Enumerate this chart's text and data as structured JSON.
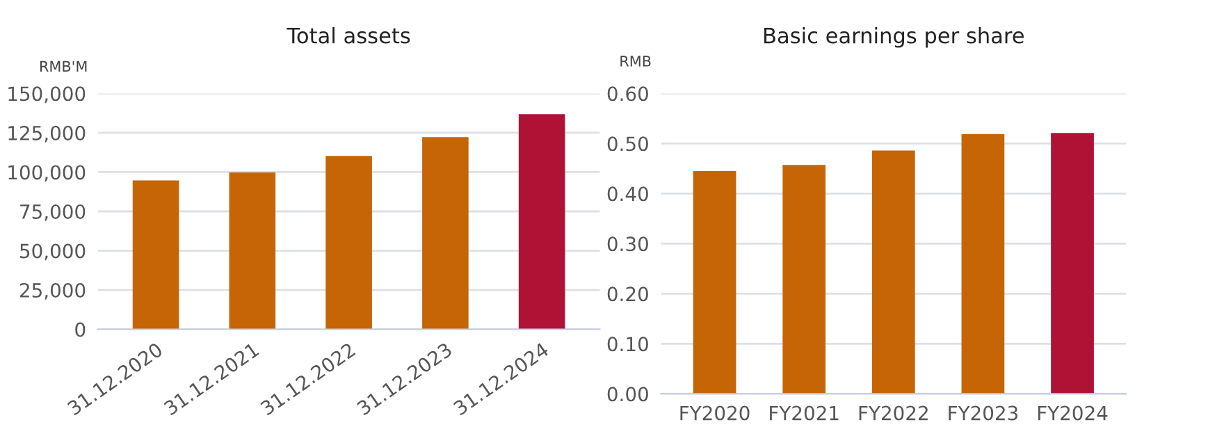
{
  "chart_data": [
    {
      "type": "bar",
      "title": "Total assets",
      "ylabel": "RMB'M",
      "categories": [
        "31.12.2020",
        "31.12.2021",
        "31.12.2022",
        "31.12.2023",
        "31.12.2024"
      ],
      "values": [
        94700,
        99800,
        110300,
        122200,
        136800
      ],
      "colors": [
        "#c56505",
        "#c56505",
        "#c56505",
        "#c56505",
        "#b01236"
      ],
      "ylim": [
        0,
        150000
      ],
      "yticks": [
        {
          "value": 0,
          "label": "0"
        },
        {
          "value": 25000,
          "label": "25,000"
        },
        {
          "value": 50000,
          "label": "50,000"
        },
        {
          "value": 75000,
          "label": "75,000"
        },
        {
          "value": 100000,
          "label": "100,000"
        },
        {
          "value": 125000,
          "label": "125,000"
        },
        {
          "value": 150000,
          "label": "150,000"
        }
      ],
      "grid": "y"
    },
    {
      "type": "bar",
      "title": "Basic earnings per share",
      "ylabel": "RMB",
      "categories": [
        "FY2020",
        "FY2021",
        "FY2022",
        "FY2023",
        "FY2024"
      ],
      "values": [
        0.445,
        0.457,
        0.486,
        0.519,
        0.521
      ],
      "colors": [
        "#c56505",
        "#c56505",
        "#c56505",
        "#c56505",
        "#b01236"
      ],
      "ylim": [
        0,
        0.6
      ],
      "yticks": [
        {
          "value": 0,
          "label": "0.00"
        },
        {
          "value": 0.1,
          "label": "0.10"
        },
        {
          "value": 0.2,
          "label": "0.20"
        },
        {
          "value": 0.3,
          "label": "0.30"
        },
        {
          "value": 0.4,
          "label": "0.40"
        },
        {
          "value": 0.5,
          "label": "0.50"
        },
        {
          "value": 0.6,
          "label": "0.60"
        }
      ],
      "grid": "y"
    }
  ]
}
